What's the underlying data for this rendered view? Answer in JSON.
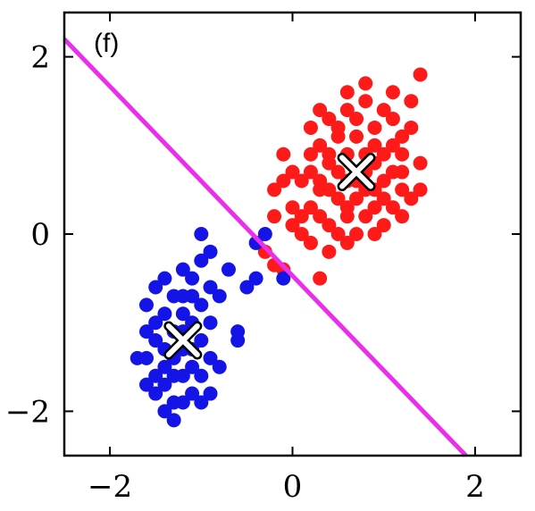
{
  "chart_data": {
    "type": "scatter",
    "panel_label": "(f)",
    "xlim": [
      -2.5,
      2.5
    ],
    "ylim": [
      -2.5,
      2.5
    ],
    "xticks": [
      -2,
      0,
      2
    ],
    "yticks": [
      -2,
      0,
      2
    ],
    "xtick_labels": [
      "−2",
      "0",
      "2"
    ],
    "ytick_labels": [
      "−2",
      "0",
      "2"
    ],
    "grid": false,
    "series": [
      {
        "color": "#ff1a1a",
        "points": [
          [
            0.8,
            0.9
          ],
          [
            1.0,
            0.6
          ],
          [
            0.5,
            1.1
          ],
          [
            0.9,
            0.3
          ],
          [
            1.2,
            0.7
          ],
          [
            0.3,
            0.5
          ],
          [
            0.6,
            0.2
          ],
          [
            1.1,
            1.0
          ],
          [
            0.4,
            0.8
          ],
          [
            0.7,
            1.3
          ],
          [
            1.3,
            0.4
          ],
          [
            0.2,
            0.9
          ],
          [
            0.9,
            1.2
          ],
          [
            0.6,
            0.6
          ],
          [
            1.0,
            0.1
          ],
          [
            0.5,
            0.4
          ],
          [
            0.8,
            0.5
          ],
          [
            0.3,
            0.2
          ],
          [
            1.2,
            1.1
          ],
          [
            0.1,
            0.6
          ],
          [
            0.7,
            0.0
          ],
          [
            1.4,
            0.8
          ],
          [
            0.4,
            1.3
          ],
          [
            0.9,
            0.8
          ],
          [
            0.2,
            0.3
          ],
          [
            0.6,
            0.9
          ],
          [
            1.1,
            0.3
          ],
          [
            0.8,
            1.5
          ],
          [
            0.5,
            0.7
          ],
          [
            1.0,
            0.9
          ],
          [
            0.3,
            1.0
          ],
          [
            0.7,
            0.4
          ],
          [
            1.2,
            0.5
          ],
          [
            0.4,
            0.1
          ],
          [
            0.9,
            0.0
          ],
          [
            0.6,
            1.4
          ],
          [
            1.1,
            1.3
          ],
          [
            0.2,
            0.7
          ],
          [
            0.8,
            0.2
          ],
          [
            0.5,
            1.2
          ],
          [
            -0.1,
            0.9
          ],
          [
            -0.2,
            0.5
          ],
          [
            0.0,
            0.3
          ],
          [
            -0.1,
            0.6
          ],
          [
            0.1,
            0.2
          ],
          [
            -0.2,
            0.2
          ],
          [
            0.2,
            -0.1
          ],
          [
            0.4,
            -0.2
          ],
          [
            -0.3,
            -0.2
          ],
          [
            -0.2,
            -0.35
          ],
          [
            -0.1,
            -0.4
          ],
          [
            0.3,
            -0.5
          ],
          [
            0.1,
            0.0
          ],
          [
            0.0,
            0.1
          ],
          [
            1.1,
            1.6
          ],
          [
            0.8,
            1.7
          ],
          [
            1.4,
            1.8
          ],
          [
            1.3,
            1.2
          ],
          [
            1.4,
            0.5
          ],
          [
            1.0,
            1.4
          ],
          [
            0.6,
            1.6
          ],
          [
            0.3,
            1.4
          ],
          [
            1.2,
            0.9
          ],
          [
            1.3,
            1.5
          ],
          [
            0.7,
            1.1
          ],
          [
            0.4,
            0.5
          ],
          [
            0.9,
            0.5
          ],
          [
            1.1,
            0.7
          ],
          [
            0.2,
            1.2
          ],
          [
            0.0,
            0.7
          ],
          [
            0.5,
            0.0
          ],
          [
            0.6,
            -0.1
          ],
          [
            0.8,
            0.7
          ],
          [
            0.7,
            0.6
          ],
          [
            1.0,
            0.4
          ],
          [
            0.6,
            0.3
          ],
          [
            0.9,
            1.0
          ],
          [
            0.4,
            0.9
          ],
          [
            1.2,
            0.2
          ],
          [
            0.3,
            0.6
          ]
        ]
      },
      {
        "color": "#1414e6",
        "points": [
          [
            -1.2,
            -1.1
          ],
          [
            -1.4,
            -1.3
          ],
          [
            -1.0,
            -0.8
          ],
          [
            -1.3,
            -0.7
          ],
          [
            -1.5,
            -1.0
          ],
          [
            -1.1,
            -1.5
          ],
          [
            -1.4,
            -1.7
          ],
          [
            -1.2,
            -1.9
          ],
          [
            -1.6,
            -1.4
          ],
          [
            -1.0,
            -1.2
          ],
          [
            -1.3,
            -1.4
          ],
          [
            -1.5,
            -0.6
          ],
          [
            -1.1,
            -0.5
          ],
          [
            -1.4,
            -0.9
          ],
          [
            -1.2,
            -0.4
          ],
          [
            -1.0,
            -0.3
          ],
          [
            -0.9,
            -0.6
          ],
          [
            -1.6,
            -0.8
          ],
          [
            -1.3,
            -1.1
          ],
          [
            -1.1,
            -1.8
          ],
          [
            -1.5,
            -1.6
          ],
          [
            -1.4,
            -2.0
          ],
          [
            -1.2,
            -1.6
          ],
          [
            -1.0,
            -1.6
          ],
          [
            -1.3,
            -1.9
          ],
          [
            -0.8,
            -0.7
          ],
          [
            -1.0,
            0.0
          ],
          [
            -0.9,
            -0.2
          ],
          [
            -0.5,
            -0.6
          ],
          [
            -0.7,
            -0.4
          ],
          [
            -0.6,
            -1.1
          ],
          [
            -0.6,
            -1.2
          ],
          [
            -0.8,
            -1.5
          ],
          [
            -1.1,
            -1.3
          ],
          [
            -1.2,
            -0.9
          ],
          [
            -1.5,
            -1.2
          ],
          [
            -1.6,
            -1.1
          ],
          [
            -1.7,
            -1.4
          ],
          [
            -1.3,
            -2.1
          ],
          [
            -0.9,
            -1.8
          ],
          [
            -0.4,
            -0.5
          ],
          [
            -0.4,
            -0.1
          ],
          [
            -0.3,
            0.0
          ],
          [
            -1.4,
            -0.5
          ],
          [
            -1.2,
            -0.7
          ],
          [
            -0.9,
            -1.0
          ],
          [
            -1.1,
            -1.0
          ],
          [
            -1.4,
            -1.5
          ],
          [
            -1.0,
            -1.9
          ],
          [
            -1.5,
            -1.8
          ],
          [
            -1.1,
            -0.7
          ],
          [
            -1.3,
            -1.6
          ],
          [
            -1.2,
            -1.3
          ],
          [
            -1.6,
            -1.7
          ],
          [
            -0.9,
            -1.4
          ],
          [
            -0.1,
            -0.5
          ]
        ]
      }
    ],
    "centroids": [
      {
        "x": 0.7,
        "y": 0.7
      },
      {
        "x": -1.2,
        "y": -1.2
      }
    ],
    "line": {
      "color": "#ea2eea",
      "points": [
        [
          -2.5,
          2.2
        ],
        [
          1.9,
          -2.5
        ]
      ]
    }
  }
}
